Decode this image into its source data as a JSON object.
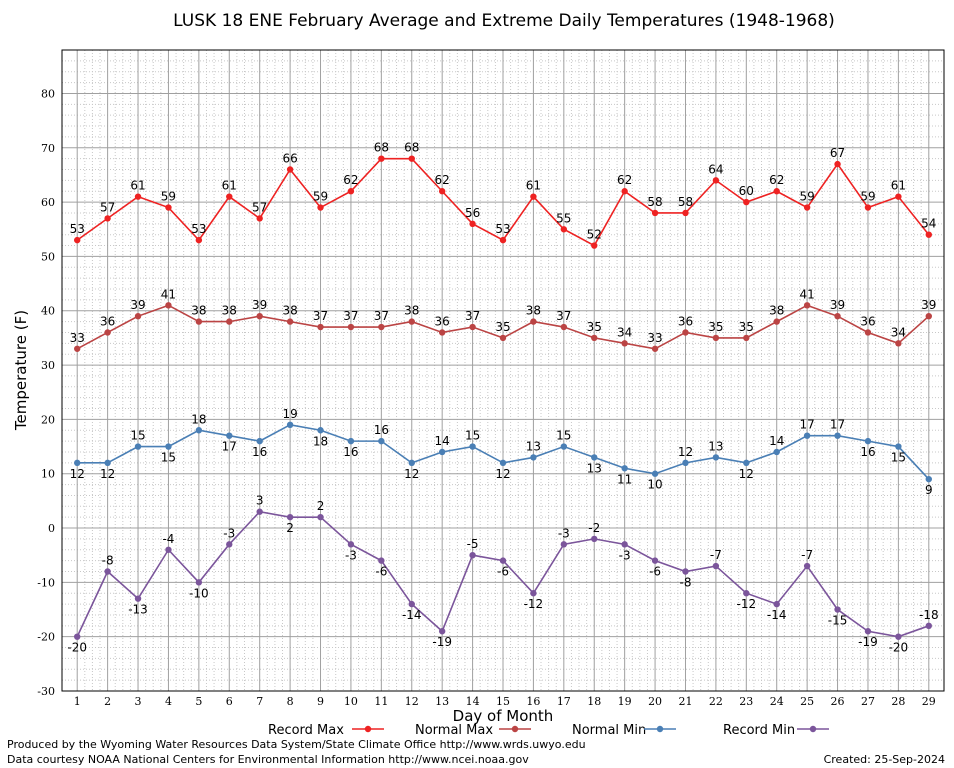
{
  "chart_data": {
    "type": "line",
    "title": "LUSK 18 ENE February Average and Extreme Daily Temperatures (1948-1968)",
    "xlabel": "Day of Month",
    "ylabel": "Temperature (F)",
    "ylim": [
      -30,
      88
    ],
    "yticks": [
      -30,
      -20,
      -10,
      0,
      10,
      20,
      30,
      40,
      50,
      60,
      70,
      80
    ],
    "xlim": [
      0.5,
      29.5
    ],
    "x": [
      1,
      2,
      3,
      4,
      5,
      6,
      7,
      8,
      9,
      10,
      11,
      12,
      13,
      14,
      15,
      16,
      17,
      18,
      19,
      20,
      21,
      22,
      23,
      24,
      25,
      26,
      27,
      28,
      29
    ],
    "grid": true,
    "legend_position": "bottom",
    "series": [
      {
        "name": "Record Max",
        "color": "#ee2222",
        "label_pos": "above",
        "values": [
          53,
          57,
          61,
          59,
          53,
          61,
          57,
          66,
          59,
          62,
          68,
          68,
          62,
          56,
          53,
          61,
          55,
          52,
          62,
          58,
          58,
          64,
          60,
          62,
          59,
          67,
          59,
          61,
          54
        ]
      },
      {
        "name": "Normal Max",
        "color": "#bb4444",
        "label_pos": "above",
        "values": [
          33,
          36,
          39,
          41,
          38,
          38,
          39,
          38,
          37,
          37,
          37,
          38,
          36,
          37,
          35,
          38,
          37,
          35,
          34,
          33,
          36,
          35,
          35,
          38,
          41,
          39,
          36,
          34,
          39
        ]
      },
      {
        "name": "Normal Min",
        "color": "#4a7fb5",
        "label_pos": "mixed",
        "values": [
          12,
          12,
          15,
          15,
          18,
          17,
          16,
          19,
          18,
          16,
          16,
          12,
          14,
          15,
          12,
          13,
          15,
          13,
          11,
          10,
          12,
          13,
          12,
          14,
          17,
          17,
          16,
          15,
          9
        ]
      },
      {
        "name": "Record Min",
        "color": "#7b559b",
        "label_pos": "mixed",
        "values": [
          -20,
          -8,
          -13,
          -4,
          -10,
          -3,
          3,
          2,
          2,
          -3,
          -6,
          -14,
          -19,
          -5,
          -6,
          -12,
          -3,
          -2,
          -3,
          -6,
          -8,
          -7,
          -12,
          -14,
          -7,
          -15,
          -19,
          -20,
          -18
        ]
      }
    ]
  },
  "footer": {
    "produced_by": "Produced by the Wyoming Water Resources Data System/State Climate Office http://www.wrds.uwyo.edu",
    "courtesy": "Data courtesy NOAA National Centers for Environmental Information http://www.ncei.noaa.gov",
    "created": "Created:  25-Sep-2024"
  }
}
